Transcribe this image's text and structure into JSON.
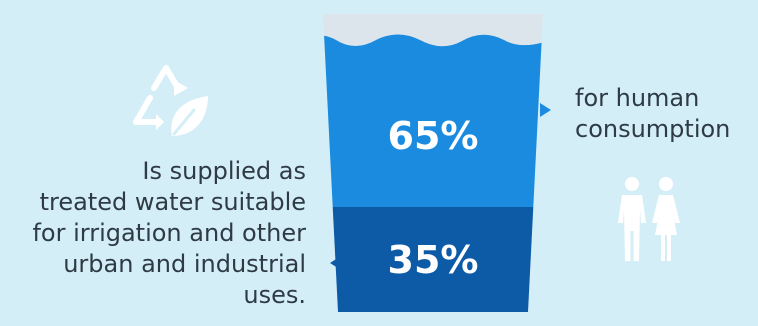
{
  "diagram": {
    "upper_share": {
      "percent_label": "65%",
      "value": 65,
      "color": "#1a8bde",
      "description_lines": [
        "for human",
        "consumption"
      ]
    },
    "lower_share": {
      "percent_label": "35%",
      "value": 35,
      "color": "#0d5aa6",
      "description_lines": [
        "Is supplied as",
        "treated water suitable",
        "for irrigation and other",
        "urban and industrial",
        "uses."
      ]
    },
    "icons": {
      "left": "recycle-leaf-icon",
      "right": "people-icon"
    },
    "colors": {
      "background": "#d4eef8",
      "glass_top": "#dde5ec",
      "text": "#2f3b44",
      "icon": "#ffffff"
    }
  }
}
